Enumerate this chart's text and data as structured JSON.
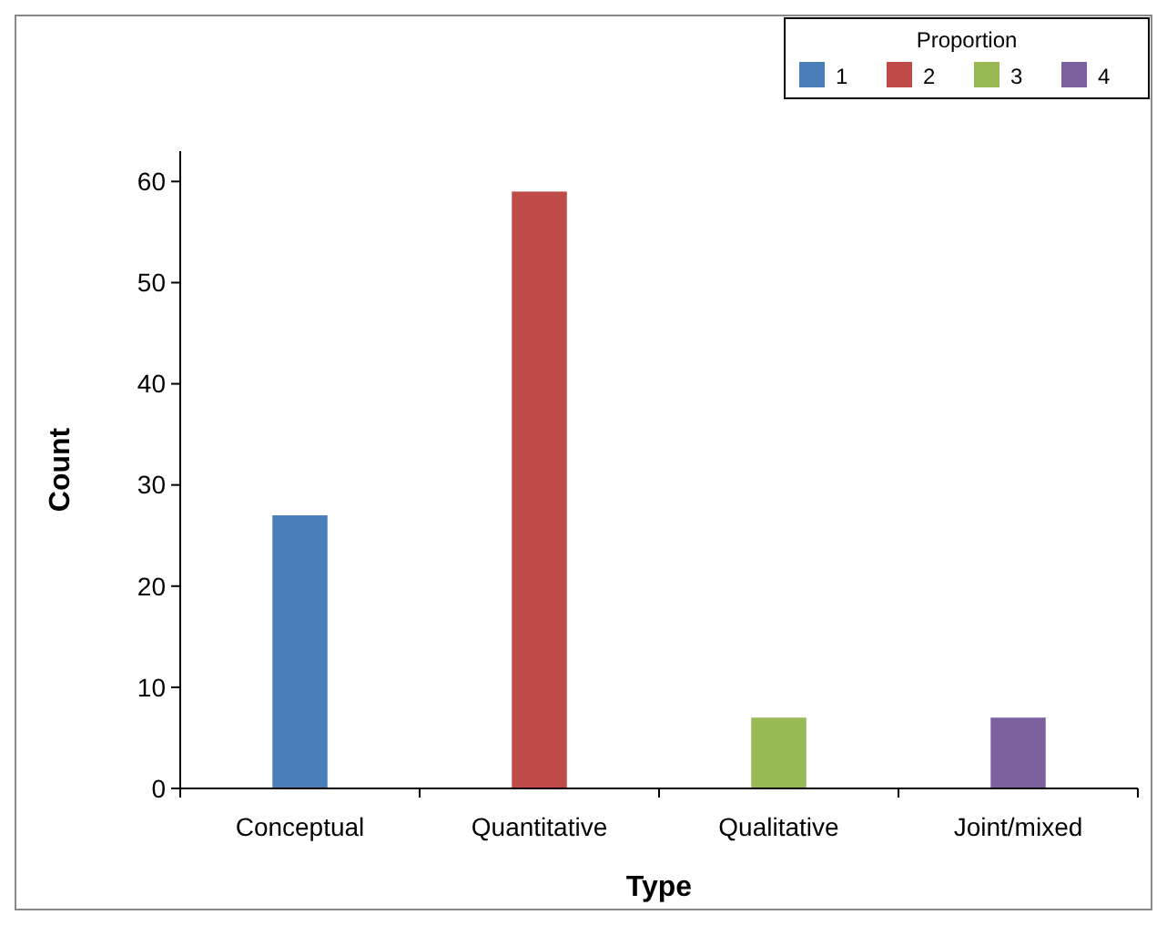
{
  "chart_data": {
    "type": "bar",
    "xlabel": "Type",
    "ylabel": "Count",
    "legend_title": "Proportion",
    "legend": "top right",
    "categories": [
      "Conceptual",
      "Quantitative",
      "Qualitative",
      "Joint/mixed"
    ],
    "series": [
      {
        "name": "1",
        "color": "#4a7ebb",
        "values": [
          27,
          null,
          null,
          null
        ]
      },
      {
        "name": "2",
        "color": "#be4b48",
        "values": [
          null,
          59,
          null,
          null
        ]
      },
      {
        "name": "3",
        "color": "#98b954",
        "values": [
          null,
          null,
          7,
          null
        ]
      },
      {
        "name": "4",
        "color": "#7d60a0",
        "values": [
          null,
          null,
          null,
          7
        ]
      }
    ],
    "ylim": [
      0,
      63
    ],
    "yticks": [
      0,
      10,
      20,
      30,
      40,
      50,
      60
    ]
  }
}
